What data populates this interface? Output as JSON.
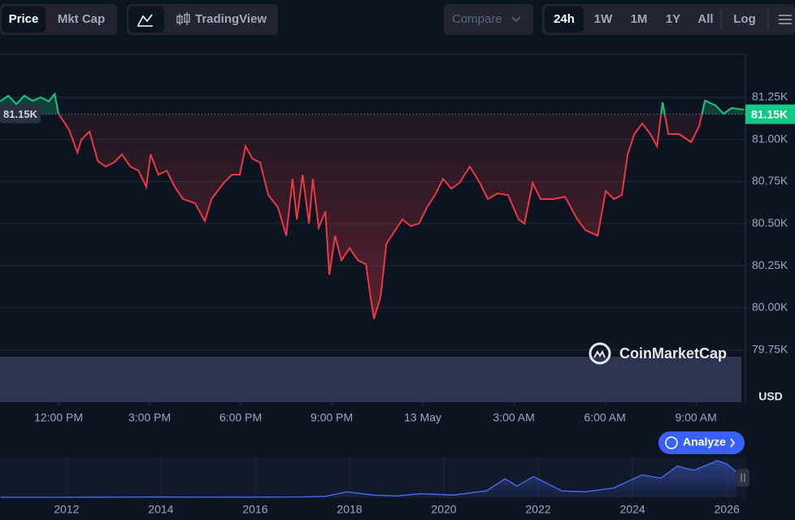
{
  "toolbar": {
    "left_tabs": [
      "Price",
      "Mkt Cap"
    ],
    "chart_mode": "TradingView",
    "compare": "Compare",
    "ranges": [
      "24h",
      "1W",
      "1M",
      "1Y",
      "All"
    ],
    "log": "Log"
  },
  "watermark": "CoinMarketCap",
  "currency": "USD",
  "analyze": "Analyze",
  "chart_data": {
    "type": "line",
    "colors": {
      "up": "#16c784",
      "down": "#ea3943"
    },
    "current_price": {
      "value": 81150,
      "label": "81.15K"
    },
    "x": [
      -1.93,
      -1.66,
      -1.39,
      -1.13,
      -0.86,
      -0.59,
      -0.32,
      -0.13,
      0,
      0.35,
      0.62,
      0.75,
      1.02,
      1.29,
      1.55,
      1.82,
      2.09,
      2.36,
      2.63,
      2.89,
      3.03,
      3.29,
      3.56,
      3.83,
      4.1,
      4.5,
      4.82,
      5.04,
      5.44,
      5.71,
      5.97,
      6.16,
      6.38,
      6.64,
      6.91,
      7.23,
      7.5,
      7.71,
      7.85,
      8.04,
      8.25,
      8.38,
      8.57,
      8.79,
      8.92,
      9.11,
      9.32,
      9.59,
      9.86,
      10.13,
      10.26,
      10.39,
      10.61,
      10.8,
      11.06,
      11.33,
      11.6,
      11.87,
      12.14,
      12.4,
      12.67,
      12.94,
      13.21,
      13.55,
      13.88,
      14.14,
      14.47,
      14.81,
      15.16,
      15.35,
      15.62,
      15.88,
      16.29,
      16.69,
      17.09,
      17.36,
      17.76,
      18.03,
      18.3,
      18.56,
      18.75,
      18.97,
      19.23,
      19.5,
      19.72,
      19.9,
      20.09,
      20.44,
      20.84,
      21.11,
      21.3,
      21.65,
      21.91,
      22.18,
      22.58
    ],
    "values": [
      81226,
      81260,
      81210,
      81260,
      81230,
      81250,
      81226,
      81270,
      81153,
      81057,
      80921,
      80999,
      81047,
      80873,
      80839,
      80863,
      80911,
      80839,
      80815,
      80718,
      80911,
      80791,
      80815,
      80718,
      80646,
      80621,
      80515,
      80646,
      80742,
      80791,
      80791,
      80960,
      80887,
      80863,
      80670,
      80597,
      80428,
      80766,
      80525,
      80791,
      80500,
      80766,
      80476,
      80573,
      80196,
      80428,
      80283,
      80355,
      80283,
      80259,
      80089,
      79935,
      80065,
      80380,
      80452,
      80525,
      80486,
      80500,
      80597,
      80670,
      80766,
      80708,
      80742,
      80839,
      80742,
      80646,
      80680,
      80670,
      80525,
      80500,
      80742,
      80646,
      80646,
      80660,
      80525,
      80462,
      80428,
      80694,
      80646,
      80670,
      80911,
      81032,
      81095,
      81032,
      80960,
      81221,
      81032,
      81032,
      80984,
      81081,
      81231,
      81202,
      81153,
      81187,
      81177
    ],
    "xlim": [
      -1.93,
      22.63
    ],
    "ylim": [
      79440,
      81505
    ],
    "xticks": [
      {
        "value": 0,
        "label": "12:00 PM"
      },
      {
        "value": 3,
        "label": "3:00 PM"
      },
      {
        "value": 6,
        "label": "6:00 PM"
      },
      {
        "value": 9,
        "label": "9:00 PM"
      },
      {
        "value": 12,
        "label": "13 May"
      },
      {
        "value": 15,
        "label": "3:00 AM"
      },
      {
        "value": 18,
        "label": "6:00 AM"
      },
      {
        "value": 21,
        "label": "9:00 AM"
      }
    ],
    "yticks": [
      {
        "value": 81250,
        "label": "81.25K"
      },
      {
        "value": 81000,
        "label": "81.00K"
      },
      {
        "value": 80750,
        "label": "80.75K"
      },
      {
        "value": 80500,
        "label": "80.50K"
      },
      {
        "value": 80250,
        "label": "80.25K"
      },
      {
        "value": 80000,
        "label": "80.00K"
      },
      {
        "value": 79750,
        "label": "79.75K"
      }
    ],
    "grid": true,
    "navigator": {
      "color": "#4a6cf7",
      "x": [
        2010.6,
        2012,
        2013,
        2013.9,
        2015,
        2016,
        2017,
        2017.5,
        2017.95,
        2018.5,
        2019,
        2019.5,
        2020.2,
        2020.9,
        2021.3,
        2021.55,
        2021.9,
        2022.5,
        2023,
        2023.6,
        2024.2,
        2024.6,
        2024.95,
        2025.3,
        2025.8,
        2026.0,
        2026.2
      ],
      "values": [
        0,
        100,
        200,
        800,
        300,
        400,
        1000,
        3000,
        17000,
        7000,
        4000,
        11000,
        7000,
        20000,
        58000,
        35000,
        65000,
        20000,
        17000,
        29000,
        70000,
        60000,
        98000,
        85000,
        115000,
        105000,
        80000
      ],
      "xlim": [
        2010.59,
        2026.41
      ],
      "ylim": [
        0,
        120000
      ],
      "xticks": [
        2012,
        2014,
        2016,
        2018,
        2020,
        2022,
        2024,
        2026
      ]
    }
  }
}
